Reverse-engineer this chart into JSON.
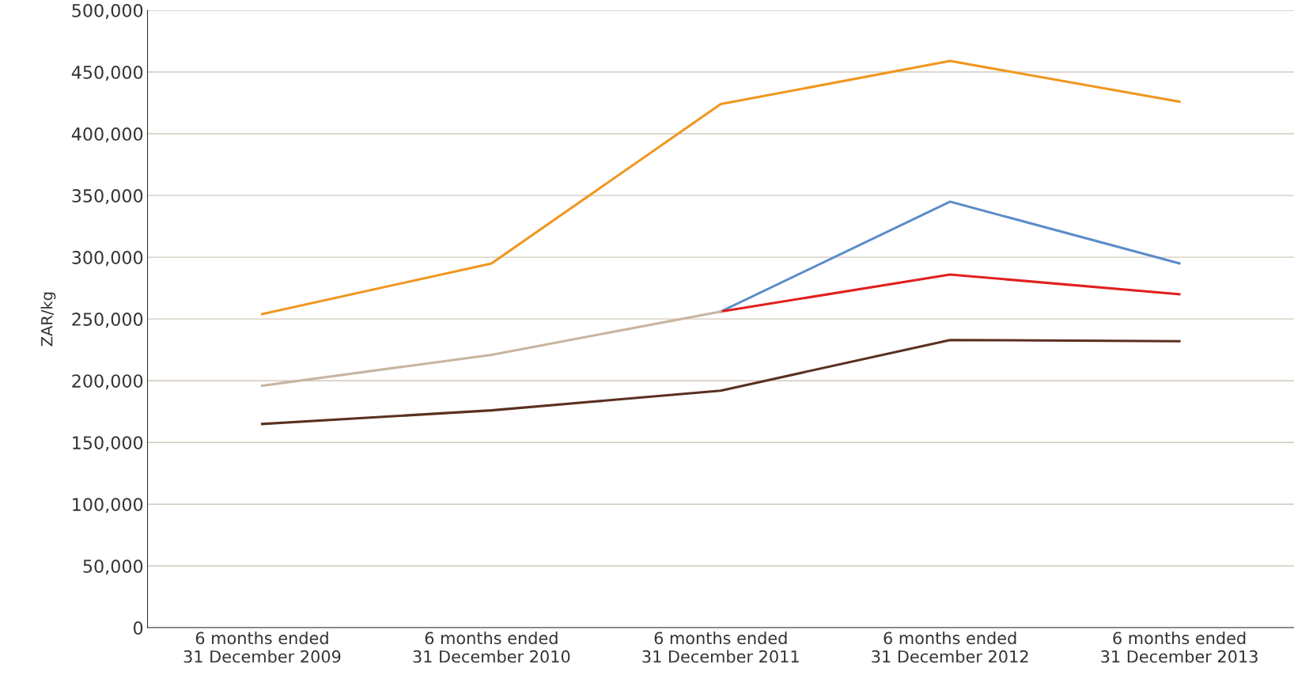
{
  "chart_data": {
    "type": "line",
    "ylabel": "ZAR/kg",
    "categories": [
      "6 months ended\n31 December 2009",
      "6 months ended\n31 December 2010",
      "6 months ended\n31 December 2011",
      "6 months ended\n31 December 2012",
      "6 months ended\n31 December 2013"
    ],
    "series": [
      {
        "color": "#f0961e",
        "values": [
          254000,
          295000,
          424000,
          459000,
          426000
        ]
      },
      {
        "color": "#5b8cc8",
        "values": [
          null,
          null,
          256000,
          345000,
          295000
        ]
      },
      {
        "color": "#e0201e",
        "values": [
          null,
          null,
          256000,
          286000,
          270000
        ]
      },
      {
        "color": "#c8b4a0",
        "values": [
          196000,
          221000,
          256000,
          null,
          null
        ]
      },
      {
        "color": "#5a3020",
        "values": [
          165000,
          176000,
          192000,
          233000,
          232000
        ]
      }
    ],
    "ylim": [
      0,
      500000
    ],
    "yticks": [
      {
        "value": 0,
        "label": "0"
      },
      {
        "value": 50000,
        "label": "50,000"
      },
      {
        "value": 100000,
        "label": "100,000"
      },
      {
        "value": 150000,
        "label": "150,000"
      },
      {
        "value": 200000,
        "label": "200,000"
      },
      {
        "value": 250000,
        "label": "250,000"
      },
      {
        "value": 300000,
        "label": "300,000"
      },
      {
        "value": 350000,
        "label": "350,000"
      },
      {
        "value": 400000,
        "label": "400,000"
      },
      {
        "value": 450000,
        "label": "450,000"
      },
      {
        "value": 500000,
        "label": "500,000"
      }
    ],
    "grid": "y",
    "marker": "none",
    "line_style": "solid"
  }
}
